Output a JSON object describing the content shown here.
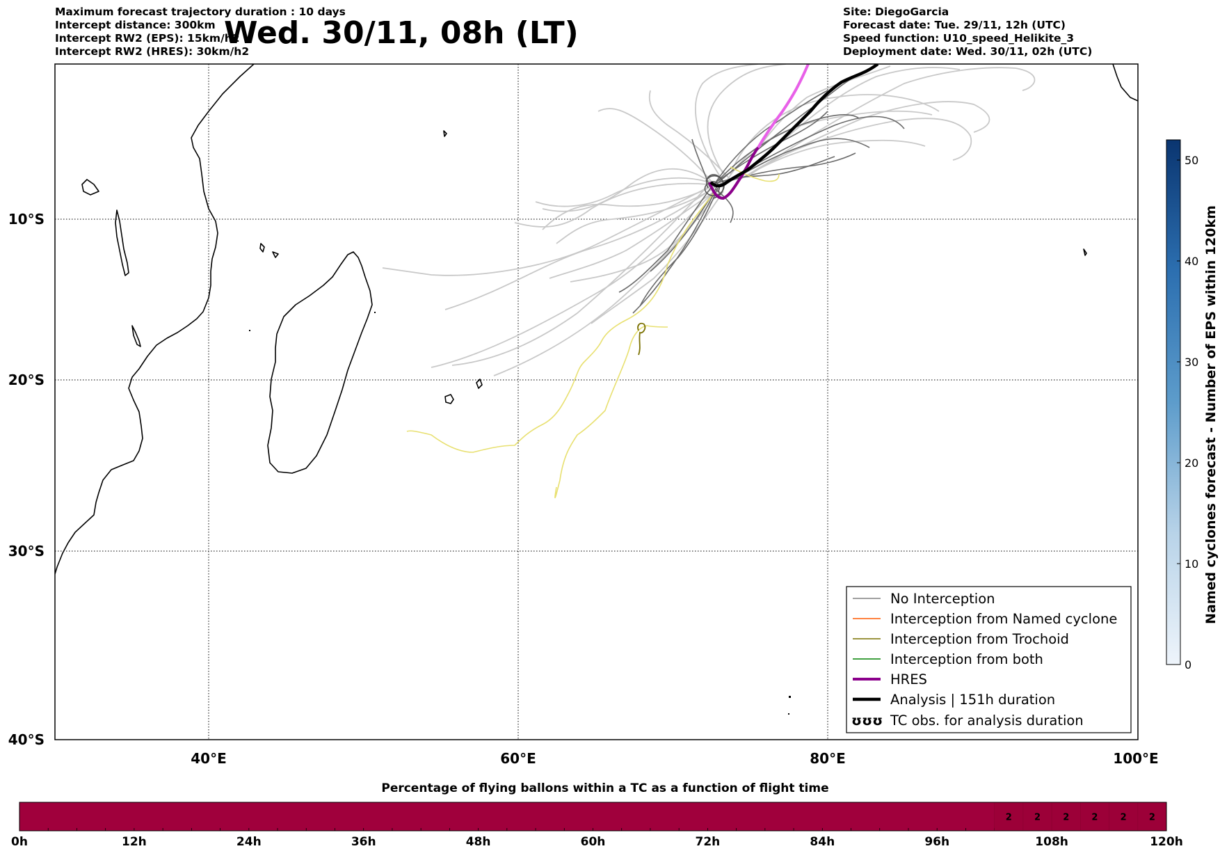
{
  "header": {
    "left_lines": [
      "Maximum forecast trajectory duration : 10 days",
      "Intercept distance: 300km",
      "Intercept RW2 (EPS):  15km/h2",
      "Intercept RW2 (HRES): 30km/h2"
    ],
    "title": "Wed. 30/11, 08h (LT)",
    "right_lines": [
      "Site: DiegoGarcia",
      "Forecast date: Tue. 29/11, 12h (UTC)",
      "Speed function: U10_speed_Helikite_3",
      "Deployment date: Wed. 30/11, 02h (UTC)"
    ]
  },
  "map": {
    "lon_ticks": [
      "40°E",
      "60°E",
      "80°E",
      "100°E"
    ],
    "lat_ticks": [
      "10°S",
      "20°S",
      "30°S",
      "40°S"
    ],
    "lon_range": [
      30,
      100
    ],
    "lat_range": [
      -40,
      -0.5
    ],
    "grid": "dotted"
  },
  "legend": {
    "items": [
      {
        "label": "No Interception",
        "color": "#808080"
      },
      {
        "label": "Interception from Named cyclone",
        "color": "#ff5a00"
      },
      {
        "label": "Interception from Trochoid",
        "color": "#7a7000"
      },
      {
        "label": "Interception from both",
        "color": "#008000"
      },
      {
        "label": "HRES",
        "color": "#8b008b"
      },
      {
        "label": "Analysis | 151h duration",
        "color": "#000000"
      },
      {
        "label": "TC obs. for analysis duration",
        "color": "#000000",
        "icon": "cyclone-symbols-icon",
        "symbol": "ʊʊʊ"
      }
    ]
  },
  "colorbar": {
    "label": "Named cyclones forecast - Number of EPS within 120km",
    "ticks": [
      "0",
      "10",
      "20",
      "30",
      "40",
      "50"
    ],
    "range": [
      0,
      52
    ]
  },
  "timeline": {
    "title": "Percentage of flying ballons within a TC as a function of flight time",
    "bar_color": "#a0003c",
    "ticks": [
      "0h",
      "12h",
      "24h",
      "36h",
      "48h",
      "60h",
      "72h",
      "84h",
      "96h",
      "108h",
      "120h"
    ],
    "cells": [
      {
        "hours": [
          102,
          105
        ],
        "value": "2"
      },
      {
        "hours": [
          105,
          108
        ],
        "value": "2"
      },
      {
        "hours": [
          108,
          111
        ],
        "value": "2"
      },
      {
        "hours": [
          111,
          114
        ],
        "value": "2"
      },
      {
        "hours": [
          114,
          117
        ],
        "value": "2"
      },
      {
        "hours": [
          117,
          120
        ],
        "value": "2"
      }
    ]
  }
}
